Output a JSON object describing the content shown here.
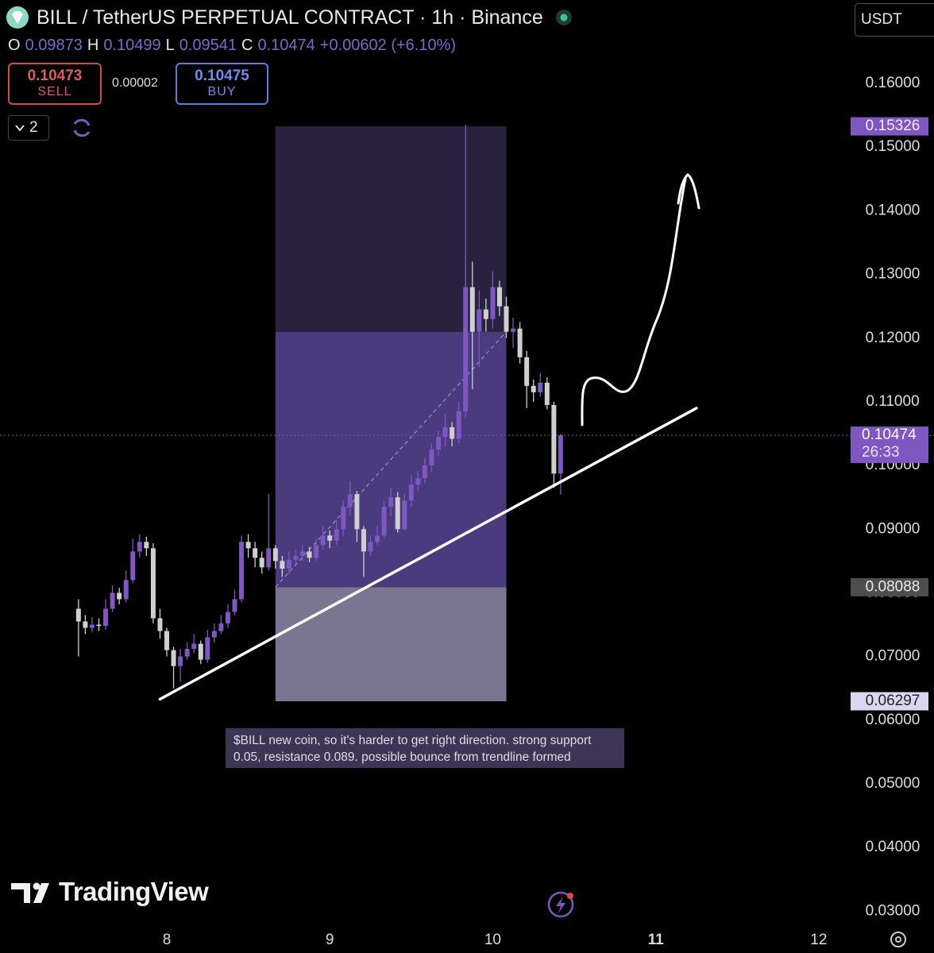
{
  "header": {
    "symbol": "BILL / TetherUS PERPETUAL CONTRACT · 1h · Binance",
    "currency": "USDT",
    "ohlc_labels": [
      "O",
      "H",
      "L",
      "C"
    ],
    "change": "+0.00602 (+6.10%)",
    "sell_price": "0.10473",
    "sell_label": "SELL",
    "spread": "0.00002",
    "buy_price": "0.10475",
    "buy_label": "BUY",
    "indicators_count": "2"
  },
  "chart_data": {
    "type": "candlestick",
    "x": [
      -13,
      -12,
      -11,
      -10,
      -9,
      -8,
      -7,
      -6,
      -5,
      -4,
      -3,
      -2,
      -1,
      0,
      1,
      2,
      3,
      4,
      5,
      6,
      7,
      8,
      9,
      10,
      11,
      12,
      13,
      14,
      15,
      16,
      17,
      18,
      19,
      20,
      21,
      22,
      23,
      24,
      25,
      26,
      27,
      28,
      29,
      30,
      31,
      32,
      33,
      34,
      35,
      36,
      37,
      38,
      39,
      40,
      41,
      42,
      43,
      44,
      45,
      46,
      47,
      48,
      49,
      50,
      51,
      52,
      53,
      54,
      55,
      56,
      57,
      58
    ],
    "open": [
      0.0775,
      0.0755,
      0.0745,
      0.075,
      0.0748,
      0.0775,
      0.08,
      0.079,
      0.082,
      0.0865,
      0.088,
      0.087,
      0.076,
      0.074,
      0.071,
      0.0685,
      0.07,
      0.0712,
      0.072,
      0.0695,
      0.073,
      0.074,
      0.0752,
      0.077,
      0.079,
      0.088,
      0.087,
      0.0855,
      0.084,
      0.087,
      0.085,
      0.0838,
      0.0852,
      0.0858,
      0.0865,
      0.0855,
      0.0875,
      0.089,
      0.0882,
      0.09,
      0.0935,
      0.0955,
      0.09,
      0.0865,
      0.088,
      0.089,
      0.0935,
      0.095,
      0.09,
      0.0945,
      0.097,
      0.098,
      0.1,
      0.1025,
      0.1045,
      0.106,
      0.1042,
      0.1085,
      0.128,
      0.121,
      0.1245,
      0.123,
      0.128,
      0.125,
      0.121,
      0.1215,
      0.117,
      0.1125,
      0.1115,
      0.113,
      0.1095,
      0.09873
    ],
    "high": [
      0.079,
      0.0765,
      0.0762,
      0.076,
      0.079,
      0.0812,
      0.0808,
      0.0835,
      0.0885,
      0.0892,
      0.0888,
      0.0878,
      0.0775,
      0.0745,
      0.0715,
      0.0712,
      0.0722,
      0.0735,
      0.0725,
      0.0742,
      0.0752,
      0.0765,
      0.0782,
      0.0805,
      0.089,
      0.0892,
      0.088,
      0.0865,
      0.0955,
      0.0875,
      0.0858,
      0.0865,
      0.0868,
      0.0875,
      0.0872,
      0.0885,
      0.0905,
      0.0898,
      0.0915,
      0.0945,
      0.0975,
      0.096,
      0.0905,
      0.089,
      0.0905,
      0.0945,
      0.0965,
      0.0958,
      0.0955,
      0.0985,
      0.0992,
      0.1012,
      0.1035,
      0.1055,
      0.108,
      0.1068,
      0.11,
      0.1535,
      0.132,
      0.1275,
      0.1262,
      0.1305,
      0.129,
      0.1265,
      0.1232,
      0.1225,
      0.118,
      0.1135,
      0.1145,
      0.1138,
      0.11,
      0.10499
    ],
    "low": [
      0.07,
      0.0735,
      0.0738,
      0.074,
      0.0742,
      0.077,
      0.0782,
      0.0785,
      0.0815,
      0.0855,
      0.0858,
      0.0752,
      0.0728,
      0.07,
      0.065,
      0.066,
      0.0695,
      0.0705,
      0.0688,
      0.069,
      0.0722,
      0.0735,
      0.0745,
      0.0765,
      0.0785,
      0.0855,
      0.084,
      0.083,
      0.0835,
      0.0838,
      0.0825,
      0.083,
      0.0845,
      0.085,
      0.0848,
      0.085,
      0.0868,
      0.087,
      0.0875,
      0.089,
      0.092,
      0.088,
      0.0825,
      0.0858,
      0.0875,
      0.0885,
      0.092,
      0.0895,
      0.0898,
      0.0935,
      0.096,
      0.0972,
      0.099,
      0.1015,
      0.103,
      0.103,
      0.1035,
      0.1075,
      0.112,
      0.1155,
      0.121,
      0.1215,
      0.1235,
      0.12,
      0.1185,
      0.116,
      0.109,
      0.11,
      0.1108,
      0.1088,
      0.0965,
      0.09541
    ],
    "close": [
      0.0755,
      0.0745,
      0.075,
      0.0748,
      0.0775,
      0.08,
      0.079,
      0.082,
      0.0865,
      0.088,
      0.087,
      0.076,
      0.074,
      0.071,
      0.0685,
      0.07,
      0.0712,
      0.072,
      0.0695,
      0.073,
      0.074,
      0.0752,
      0.077,
      0.079,
      0.088,
      0.087,
      0.0855,
      0.084,
      0.087,
      0.085,
      0.0838,
      0.0852,
      0.0858,
      0.0865,
      0.0855,
      0.0875,
      0.089,
      0.0882,
      0.09,
      0.0935,
      0.0955,
      0.09,
      0.0865,
      0.088,
      0.089,
      0.0935,
      0.095,
      0.09,
      0.0945,
      0.097,
      0.098,
      0.1,
      0.1025,
      0.1045,
      0.106,
      0.1042,
      0.1085,
      0.128,
      0.121,
      0.1245,
      0.123,
      0.128,
      0.125,
      0.121,
      0.1215,
      0.117,
      0.1125,
      0.1115,
      0.113,
      0.1095,
      0.09873,
      0.10474
    ],
    "up_color": "#7e57c2",
    "down_color": "#cfcfcf",
    "xlim": [
      -24.56,
      100.58
    ],
    "xticks": [
      {
        "value": 0,
        "label": "8"
      },
      {
        "value": 24,
        "label": "9"
      },
      {
        "value": 48,
        "label": "10"
      },
      {
        "value": 72,
        "label": "11"
      },
      {
        "value": 96,
        "label": "12"
      }
    ],
    "ylim": [
      0.0278,
      0.1731
    ],
    "yticks": [
      {
        "value": 0.16,
        "label": "0.16000"
      },
      {
        "value": 0.15,
        "label": "0.15000"
      },
      {
        "value": 0.14,
        "label": "0.14000"
      },
      {
        "value": 0.13,
        "label": "0.13000"
      },
      {
        "value": 0.12,
        "label": "0.12000"
      },
      {
        "value": 0.11,
        "label": "0.11000"
      },
      {
        "value": 0.1,
        "label": "0.10000"
      },
      {
        "value": 0.09,
        "label": "0.09000"
      },
      {
        "value": 0.08,
        "label": "0.08000"
      },
      {
        "value": 0.07,
        "label": "0.07000"
      },
      {
        "value": 0.06,
        "label": "0.06000"
      },
      {
        "value": 0.05,
        "label": "0.05000"
      },
      {
        "value": 0.04,
        "label": "0.04000"
      },
      {
        "value": 0.03,
        "label": "0.03000"
      }
    ],
    "range_box": {
      "x": [
        16,
        50
      ],
      "levels": [
        0.15326,
        0.121,
        0.08088,
        0.06297
      ],
      "colors": [
        "#29223f",
        "#4a3a7e",
        "#7a7590"
      ]
    },
    "trendline": {
      "x": [
        -1,
        78
      ],
      "y": [
        0.0633,
        0.109
      ],
      "color": "#ffffff"
    },
    "countdown": "26:33",
    "annotation": [
      "$BILL new coin, so it's harder to get right direction. strong support",
      "0.05, resistance 0.089. possible bounce from trendline formed"
    ]
  },
  "watermark": "TradingView"
}
